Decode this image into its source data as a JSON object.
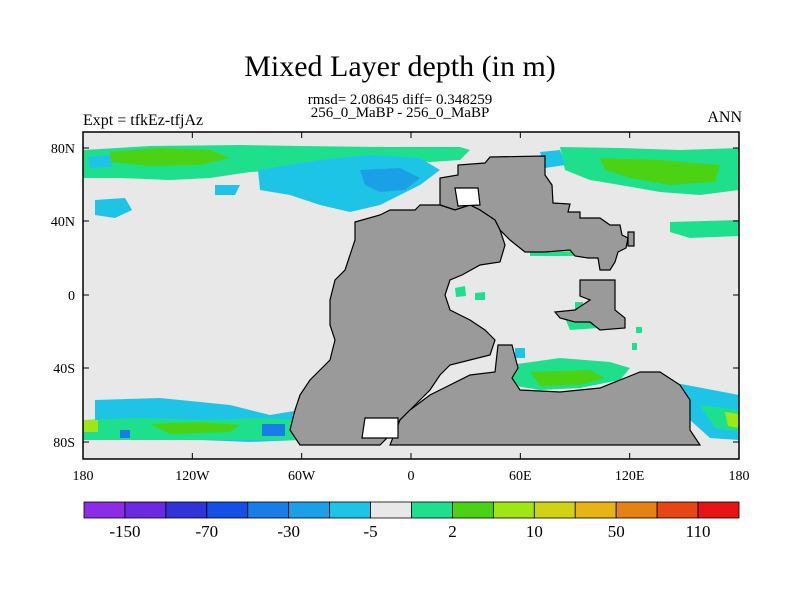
{
  "title": "Mixed Layer depth (in m)",
  "stats_line": "rmsd= 2.08645 diff= 0.348259",
  "subtitle": "256_0_MaBP - 256_0_MaBP",
  "left_string": "Expt = tfkEz-tfjAz",
  "right_string": "ANN",
  "map": {
    "x_ticks": [
      "180",
      "120W",
      "60W",
      "0",
      "60E",
      "120E",
      "180"
    ],
    "y_ticks": [
      "80N",
      "40N",
      "0",
      "40S",
      "80S"
    ],
    "land_color": "#9a9a9a",
    "ocean_zero_color": "#e8e8e8"
  },
  "colorbar": {
    "colors": [
      "#8b2de6",
      "#6a2ae0",
      "#3232d9",
      "#1450e6",
      "#1a7ce6",
      "#1aa0e6",
      "#1ec4e6",
      "#e8e8e8",
      "#1ee08c",
      "#4cd214",
      "#a0e614",
      "#d2d214",
      "#e6b414",
      "#e68214",
      "#e64614",
      "#e61414"
    ],
    "labels": [
      "-150",
      "-70",
      "-30",
      "-5",
      "2",
      "10",
      "50",
      "110"
    ]
  }
}
